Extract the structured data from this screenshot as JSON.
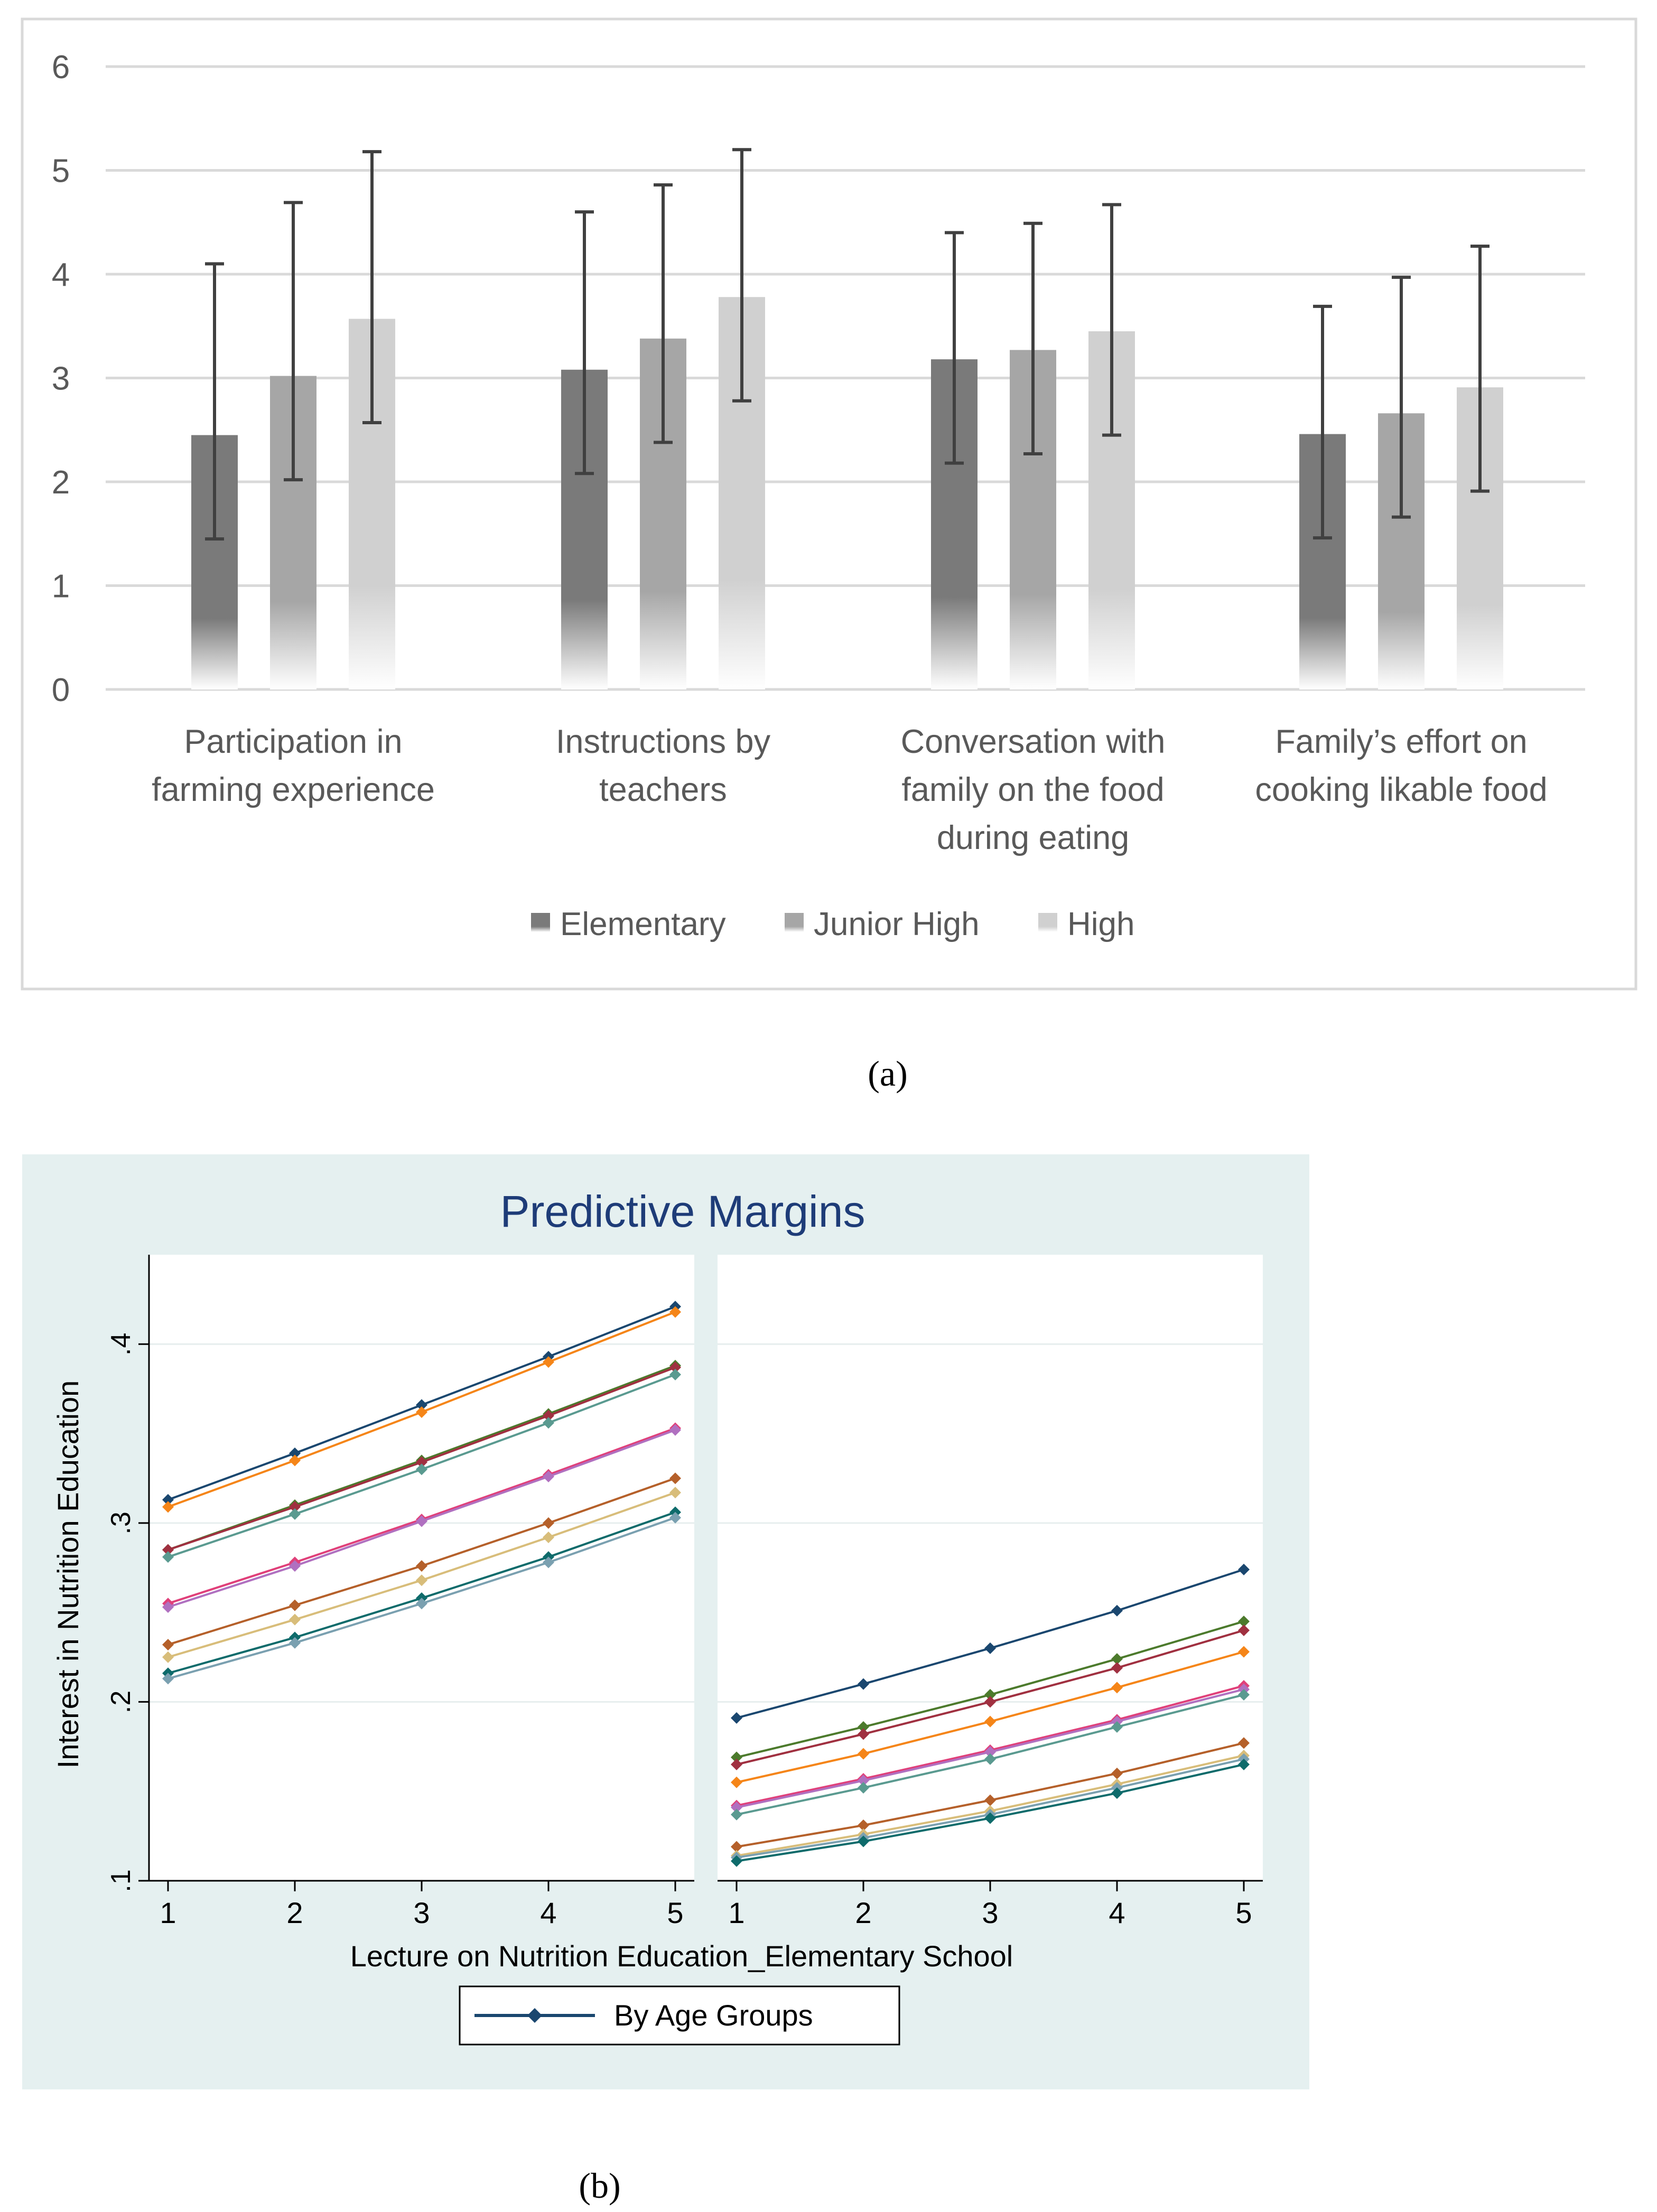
{
  "chart_data": [
    {
      "type": "bar",
      "panel_label": "(a)",
      "title": "",
      "xlabel": "",
      "ylabel": "",
      "ylim": [
        0,
        6
      ],
      "yticks": [
        "0",
        "1",
        "2",
        "3",
        "4",
        "5",
        "6"
      ],
      "grid": true,
      "legend": "bottom-center",
      "categories": [
        [
          "Participation in",
          "farming experience"
        ],
        [
          "Instructions by",
          "teachers"
        ],
        [
          "Conversation with",
          "family on the food",
          "during eating"
        ],
        [
          "Family’s effort on",
          "cooking likable food"
        ]
      ],
      "series": [
        {
          "name": "Elementary",
          "color": "#7a7a7a",
          "values": [
            2.45,
            3.08,
            3.18,
            2.46
          ],
          "error_low": [
            1.45,
            2.08,
            2.18,
            1.46
          ],
          "error_high": [
            4.1,
            4.6,
            4.4,
            3.69
          ]
        },
        {
          "name": "Junior High",
          "color": "#a6a6a6",
          "values": [
            3.02,
            3.38,
            3.27,
            2.66
          ],
          "error_low": [
            2.02,
            2.38,
            2.27,
            1.66
          ],
          "error_high": [
            4.69,
            4.86,
            4.49,
            3.97
          ]
        },
        {
          "name": "High",
          "color": "#d0d0d0",
          "values": [
            3.57,
            3.78,
            3.45,
            2.91
          ],
          "error_low": [
            2.57,
            2.78,
            2.45,
            1.91
          ],
          "error_high": [
            5.18,
            5.2,
            4.67,
            4.27
          ]
        }
      ]
    },
    {
      "type": "line",
      "panel_label": "(b)",
      "title": "Predictive Margins",
      "xlabel": "Lecture on Nutrition Education_Elementary School",
      "ylabel": "Interest in Nutrition Education",
      "ylim": [
        0.1,
        0.45
      ],
      "yticks": [
        ".1",
        ".2",
        ".3",
        ".4"
      ],
      "xticks": [
        "1",
        "2",
        "3",
        "4",
        "5"
      ],
      "x": [
        1,
        2,
        3,
        4,
        5
      ],
      "legend": "bottom-center",
      "legend_label": "By Age Groups",
      "legend_color": "#1a476f",
      "subplots": [
        {
          "series": [
            {
              "color": "#1a476f",
              "values": [
                0.313,
                0.339,
                0.366,
                0.393,
                0.421
              ]
            },
            {
              "color": "#f58518",
              "values": [
                0.309,
                0.335,
                0.362,
                0.39,
                0.418
              ]
            },
            {
              "color": "#4c7a2c",
              "values": [
                0.285,
                0.31,
                0.335,
                0.361,
                0.388
              ]
            },
            {
              "color": "#a03040",
              "values": [
                0.285,
                0.309,
                0.334,
                0.36,
                0.387
              ]
            },
            {
              "color": "#5a9a90",
              "values": [
                0.281,
                0.305,
                0.33,
                0.356,
                0.383
              ]
            },
            {
              "color": "#e0407a",
              "values": [
                0.255,
                0.278,
                0.302,
                0.327,
                0.353
              ]
            },
            {
              "color": "#b070c0",
              "values": [
                0.253,
                0.276,
                0.301,
                0.326,
                0.352
              ]
            },
            {
              "color": "#b5602a",
              "values": [
                0.232,
                0.254,
                0.276,
                0.3,
                0.325
              ]
            },
            {
              "color": "#d8bd7a",
              "values": [
                0.225,
                0.246,
                0.268,
                0.292,
                0.317
              ]
            },
            {
              "color": "#0e6b6b",
              "values": [
                0.216,
                0.236,
                0.258,
                0.281,
                0.306
              ]
            },
            {
              "color": "#7aa0b0",
              "values": [
                0.213,
                0.233,
                0.255,
                0.278,
                0.303
              ]
            }
          ]
        },
        {
          "series": [
            {
              "color": "#1a476f",
              "values": [
                0.191,
                0.21,
                0.23,
                0.251,
                0.274
              ]
            },
            {
              "color": "#4c7a2c",
              "values": [
                0.169,
                0.186,
                0.204,
                0.224,
                0.245
              ]
            },
            {
              "color": "#a03040",
              "values": [
                0.165,
                0.182,
                0.2,
                0.219,
                0.24
              ]
            },
            {
              "color": "#f58518",
              "values": [
                0.155,
                0.171,
                0.189,
                0.208,
                0.228
              ]
            },
            {
              "color": "#e0407a",
              "values": [
                0.142,
                0.157,
                0.173,
                0.19,
                0.209
              ]
            },
            {
              "color": "#b070c0",
              "values": [
                0.141,
                0.156,
                0.172,
                0.189,
                0.207
              ]
            },
            {
              "color": "#5a9a90",
              "values": [
                0.137,
                0.152,
                0.168,
                0.186,
                0.204
              ]
            },
            {
              "color": "#b5602a",
              "values": [
                0.119,
                0.131,
                0.145,
                0.16,
                0.177
              ]
            },
            {
              "color": "#d8bd7a",
              "values": [
                0.114,
                0.126,
                0.139,
                0.154,
                0.17
              ]
            },
            {
              "color": "#7aa0b0",
              "values": [
                0.113,
                0.124,
                0.137,
                0.152,
                0.168
              ]
            },
            {
              "color": "#0e6b6b",
              "values": [
                0.111,
                0.122,
                0.135,
                0.149,
                0.165
              ]
            }
          ]
        }
      ]
    }
  ]
}
